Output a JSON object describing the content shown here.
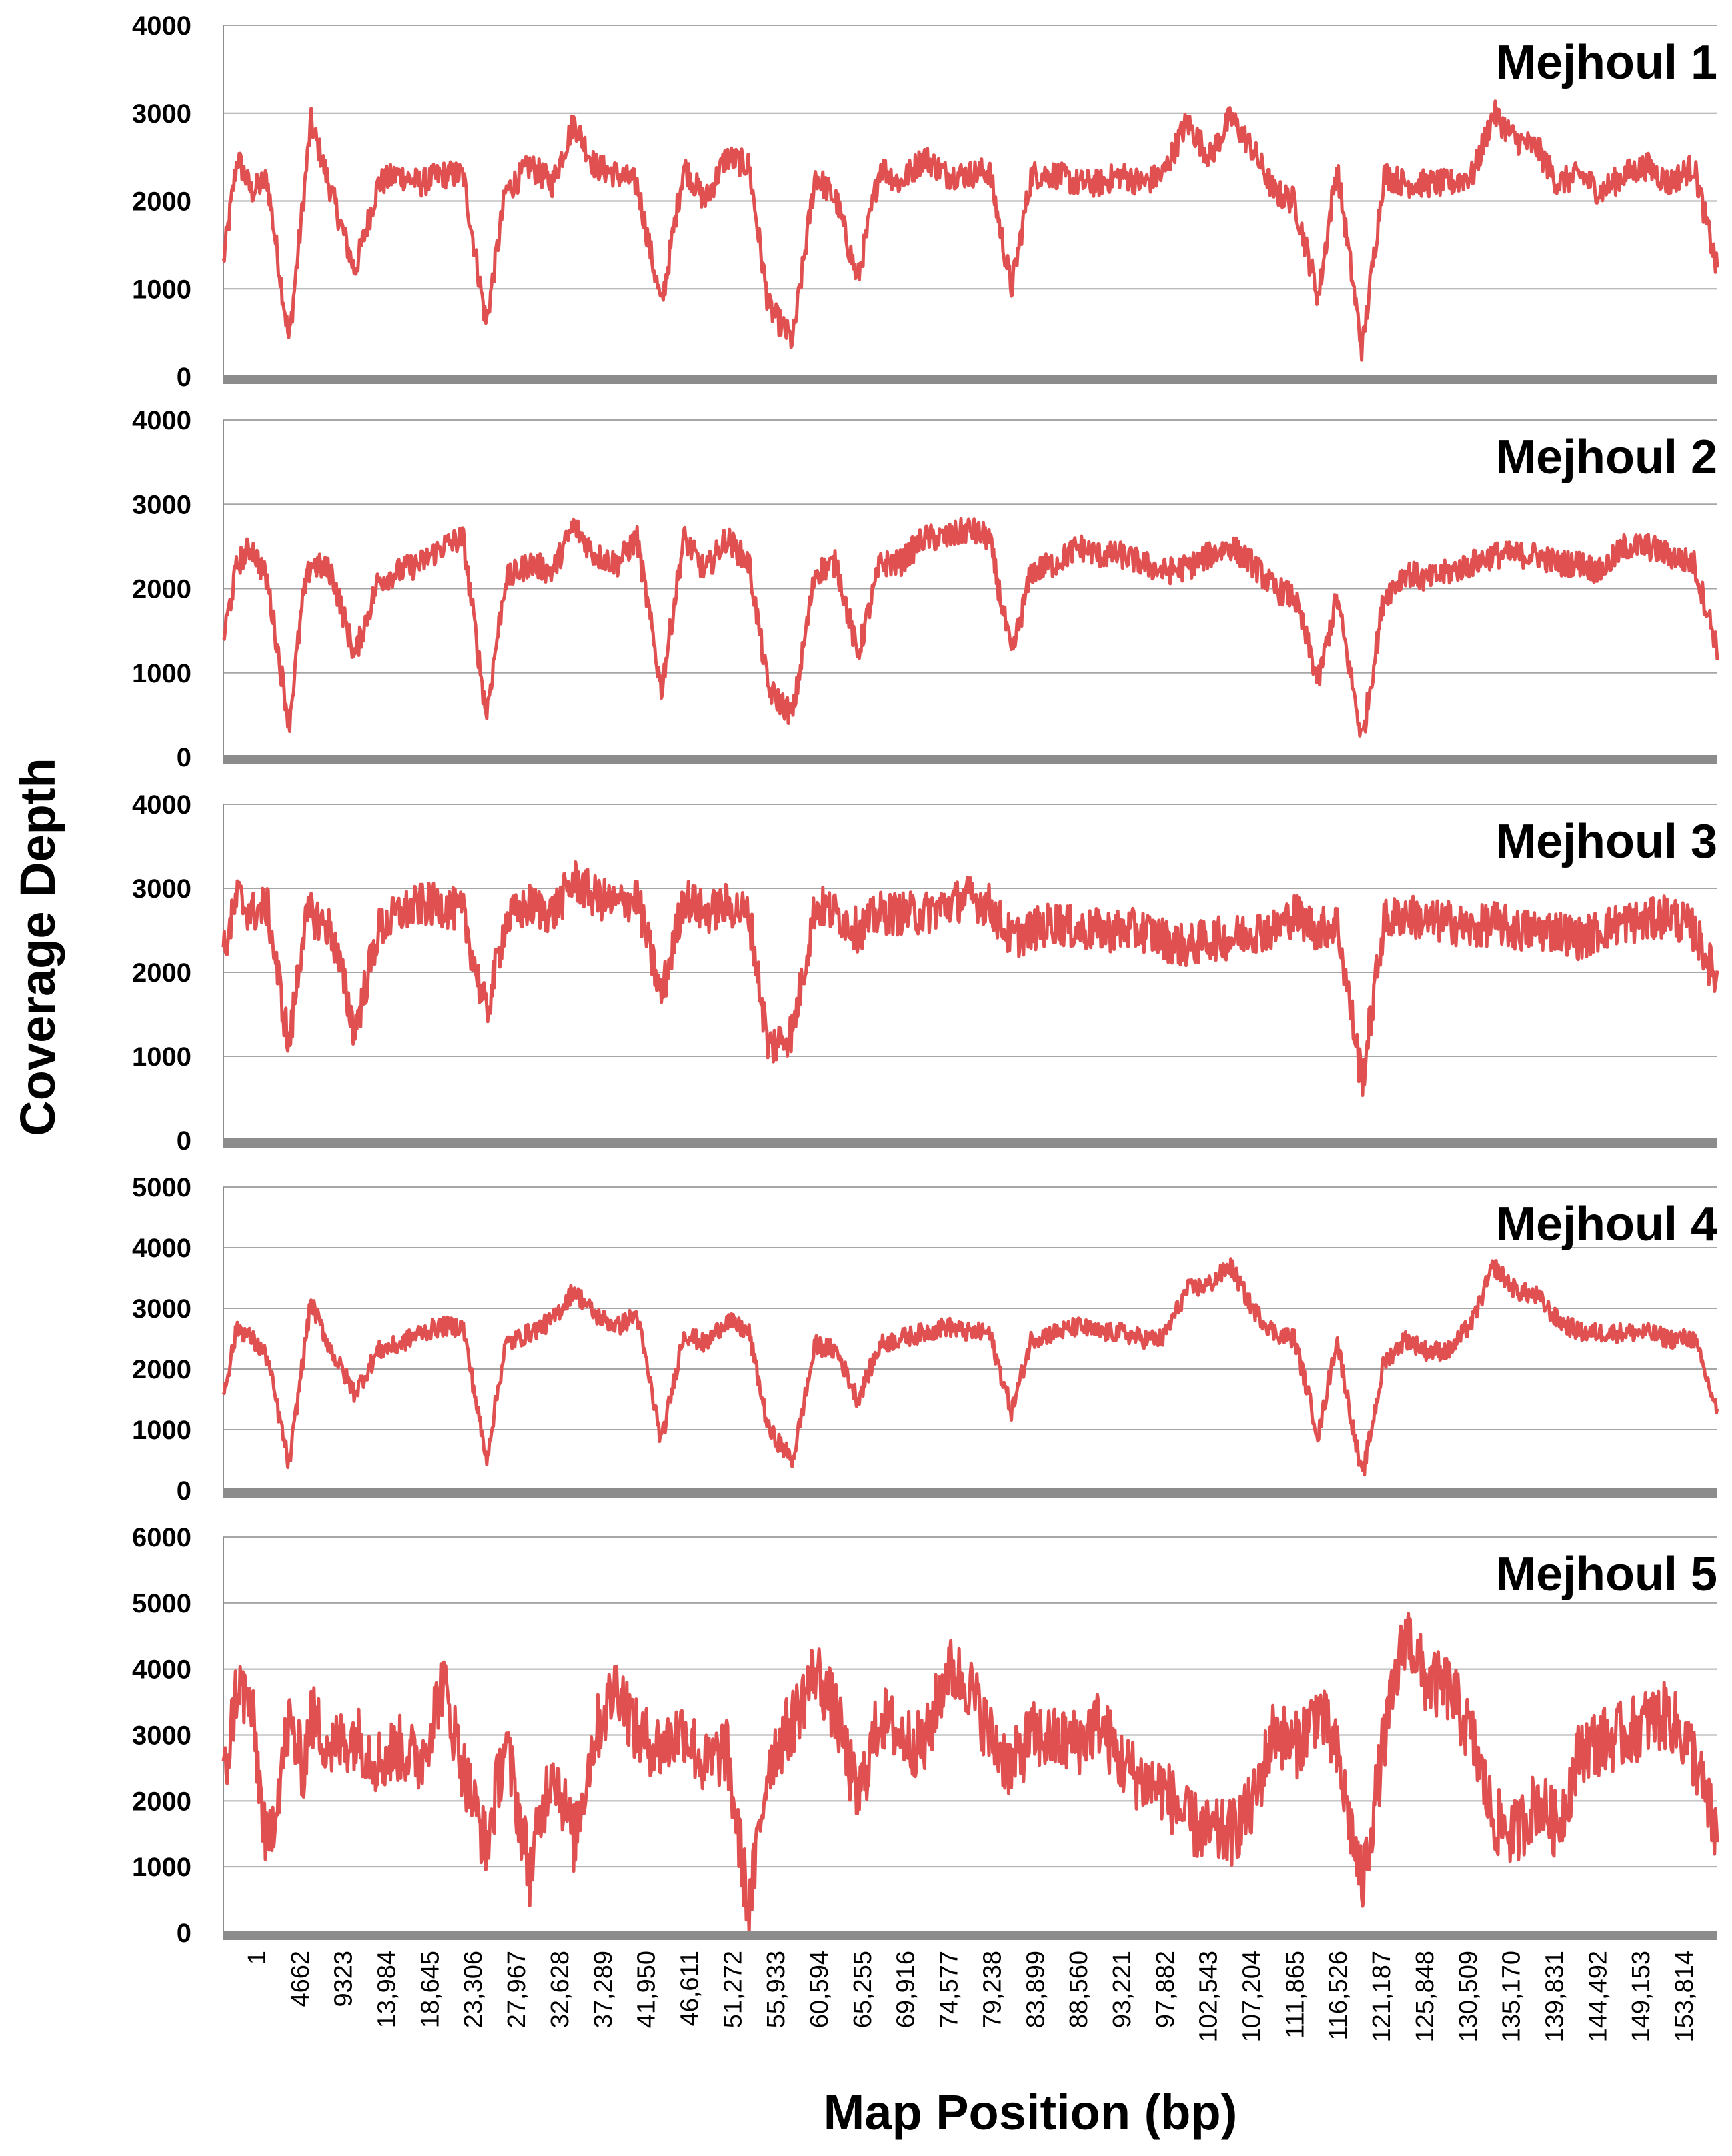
{
  "chart_data": {
    "type": "line",
    "xlabel": "Map Position (bp)",
    "ylabel": "Coverage Depth",
    "x_tick_labels": [
      "1",
      "4662",
      "9323",
      "13,984",
      "18,645",
      "23,306",
      "27,967",
      "32,628",
      "37,289",
      "41,950",
      "46,611",
      "51,272",
      "55,933",
      "60,594",
      "65,255",
      "69,916",
      "74,577",
      "79,238",
      "83,899",
      "88,560",
      "93,221",
      "97,882",
      "102,543",
      "107,204",
      "111,865",
      "116,526",
      "121,187",
      "125,848",
      "130,509",
      "135,170",
      "139,831",
      "144,492",
      "149,153",
      "153,814"
    ],
    "xlim": [
      0,
      159000
    ],
    "colors": {
      "series": "#e05050",
      "grid": "#a6a6a6",
      "baseline": "#8c8c8c"
    },
    "grid": true,
    "panels": [
      {
        "title": "Mejhoul 1",
        "ylim": [
          0,
          4000
        ],
        "yticks": [
          "0",
          "1000",
          "2000",
          "3000",
          "4000"
        ],
        "x": [
          0,
          1500,
          3000,
          4662,
          7000,
          8500,
          9323,
          11500,
          13984,
          16500,
          18645,
          21000,
          23306,
          25500,
          27967,
          30000,
          32628,
          35000,
          37289,
          39500,
          41950,
          44000,
          46611,
          49000,
          51272,
          53500,
          55933,
          58000,
          60594,
          63000,
          65255,
          67500,
          69916,
          72000,
          74577,
          77000,
          79238,
          81500,
          83899,
          86000,
          88560,
          91000,
          93221,
          95500,
          97882,
          100000,
          102543,
          105000,
          107204,
          109500,
          111865,
          114000,
          116526,
          118500,
          121187,
          123500,
          125848,
          128000,
          130509,
          133000,
          135170,
          137500,
          139831,
          142000,
          144492,
          146500,
          149153,
          151500,
          153814,
          156500,
          159000
        ],
        "values": [
          1300,
          2500,
          2100,
          2250,
          400,
          2000,
          2900,
          2100,
          1200,
          2200,
          2300,
          2200,
          2300,
          2300,
          600,
          2100,
          2400,
          2200,
          2900,
          2400,
          2300,
          2200,
          800,
          2400,
          2000,
          2500,
          2400,
          800,
          400,
          2300,
          2000,
          1100,
          2400,
          2200,
          2500,
          2300,
          2300,
          2350,
          1000,
          2300,
          2300,
          2200,
          2200,
          2300,
          2200,
          2300,
          2900,
          2500,
          2950,
          2600,
          2100,
          2000,
          900,
          2400,
          300,
          2300,
          2200,
          2200,
          2200,
          2300,
          3000,
          2700,
          2600,
          2200,
          2300,
          2100,
          2300,
          2400,
          2200,
          2400,
          1200
        ]
      },
      {
        "title": "Mejhoul 2",
        "ylim": [
          0,
          4000
        ],
        "yticks": [
          "0",
          "1000",
          "2000",
          "3000",
          "4000"
        ],
        "x": [
          0,
          1500,
          3000,
          4662,
          7000,
          8500,
          9323,
          11500,
          13984,
          16500,
          18645,
          21000,
          23306,
          25500,
          27967,
          30000,
          32628,
          35000,
          37289,
          39500,
          41950,
          44000,
          46611,
          49000,
          51272,
          53500,
          55933,
          58000,
          60594,
          63000,
          65255,
          67500,
          69916,
          72000,
          74577,
          77000,
          79238,
          81500,
          83899,
          86000,
          88560,
          91000,
          93221,
          95500,
          97882,
          100000,
          102543,
          105000,
          107204,
          109500,
          111865,
          114000,
          116526,
          118500,
          121187,
          123500,
          125848,
          128000,
          130509,
          133000,
          135170,
          137500,
          139831,
          142000,
          144492,
          146500,
          149153,
          151500,
          153814,
          156500,
          159000
        ],
        "values": [
          1400,
          2300,
          2500,
          2100,
          400,
          1900,
          2300,
          2200,
          1200,
          2100,
          2200,
          2300,
          2500,
          2600,
          500,
          2100,
          2300,
          2200,
          2750,
          2400,
          2300,
          2600,
          800,
          2600,
          2200,
          2600,
          2300,
          800,
          500,
          2200,
          2300,
          1200,
          2300,
          2300,
          2600,
          2600,
          2700,
          2600,
          1200,
          2200,
          2300,
          2500,
          2400,
          2400,
          2300,
          2200,
          2250,
          2400,
          2500,
          2300,
          2000,
          1900,
          900,
          1900,
          200,
          1900,
          2200,
          2100,
          2200,
          2300,
          2400,
          2400,
          2400,
          2300,
          2300,
          2200,
          2500,
          2500,
          2400,
          2300,
          1300
        ]
      },
      {
        "title": "Mejhoul 3",
        "ylim": [
          0,
          4000
        ],
        "yticks": [
          "0",
          "1000",
          "2000",
          "3000",
          "4000"
        ],
        "x": [
          0,
          1500,
          3000,
          4662,
          7000,
          8500,
          9323,
          11500,
          13984,
          16500,
          18645,
          21000,
          23306,
          25500,
          27967,
          30000,
          32628,
          35000,
          37289,
          39500,
          41950,
          44000,
          46611,
          49000,
          51272,
          53500,
          55933,
          58000,
          60594,
          63000,
          65255,
          67500,
          69916,
          72000,
          74577,
          77000,
          79238,
          81500,
          83899,
          86000,
          88560,
          91000,
          93221,
          95500,
          97882,
          100000,
          102543,
          105000,
          107204,
          109500,
          111865,
          114000,
          116526,
          118500,
          121187,
          123500,
          125848,
          128000,
          130509,
          133000,
          135170,
          137500,
          139831,
          142000,
          144492,
          146500,
          149153,
          151500,
          153814,
          156500,
          159000
        ],
        "values": [
          2200,
          2900,
          2700,
          2800,
          1100,
          2500,
          2700,
          2500,
          1300,
          2500,
          2700,
          2800,
          2800,
          2700,
          1500,
          2600,
          2800,
          2700,
          3100,
          2900,
          2800,
          2900,
          1700,
          2900,
          2700,
          2800,
          2700,
          1100,
          1300,
          2800,
          2700,
          2500,
          2700,
          2700,
          2700,
          2800,
          2900,
          2800,
          2400,
          2500,
          2600,
          2500,
          2500,
          2500,
          2500,
          2400,
          2300,
          2400,
          2400,
          2500,
          2500,
          2700,
          2500,
          2600,
          700,
          2600,
          2700,
          2600,
          2600,
          2500,
          2600,
          2500,
          2500,
          2500,
          2400,
          2500,
          2600,
          2600,
          2700,
          2500,
          1900
        ]
      },
      {
        "title": "Mejhoul 4",
        "ylim": [
          0,
          5000
        ],
        "yticks": [
          "0",
          "1000",
          "2000",
          "3000",
          "4000",
          "5000"
        ],
        "x": [
          0,
          1500,
          3000,
          4662,
          7000,
          8500,
          9323,
          11500,
          13984,
          16500,
          18645,
          21000,
          23306,
          25500,
          27967,
          30000,
          32628,
          35000,
          37289,
          39500,
          41950,
          44000,
          46611,
          49000,
          51272,
          53500,
          55933,
          58000,
          60594,
          63000,
          65255,
          67500,
          69916,
          72000,
          74577,
          77000,
          79238,
          81500,
          83899,
          86000,
          88560,
          91000,
          93221,
          95500,
          97882,
          100000,
          102543,
          105000,
          107204,
          109500,
          111865,
          114000,
          116526,
          118500,
          121187,
          123500,
          125848,
          128000,
          130509,
          133000,
          135170,
          137500,
          139831,
          142000,
          144492,
          146500,
          149153,
          151500,
          153814,
          156500,
          159000
        ],
        "values": [
          1600,
          2700,
          2500,
          2200,
          400,
          2200,
          3100,
          2300,
          1600,
          2300,
          2400,
          2600,
          2700,
          2700,
          500,
          2400,
          2600,
          2800,
          3300,
          2900,
          2700,
          2900,
          800,
          2600,
          2400,
          2800,
          2600,
          1000,
          500,
          2400,
          2300,
          1500,
          2400,
          2500,
          2600,
          2700,
          2600,
          2600,
          1300,
          2500,
          2600,
          2700,
          2600,
          2600,
          2500,
          2500,
          3300,
          3400,
          3700,
          3000,
          2600,
          2500,
          900,
          2500,
          200,
          2100,
          2500,
          2300,
          2300,
          2800,
          3700,
          3300,
          3200,
          2800,
          2600,
          2600,
          2600,
          2600,
          2500,
          2500,
          1300
        ]
      },
      {
        "title": "Mejhoul 5",
        "ylim": [
          0,
          6000
        ],
        "yticks": [
          "0",
          "1000",
          "2000",
          "3000",
          "4000",
          "5000",
          "6000"
        ],
        "x": [
          0,
          1500,
          3000,
          4662,
          7000,
          8500,
          9323,
          11500,
          13984,
          16500,
          18645,
          21000,
          23306,
          25500,
          27967,
          30000,
          32628,
          35000,
          37289,
          39500,
          41950,
          44000,
          46611,
          49000,
          51272,
          53500,
          55933,
          58000,
          60594,
          63000,
          65255,
          67500,
          69916,
          72000,
          74577,
          77000,
          79238,
          81500,
          83899,
          86000,
          88560,
          91000,
          93221,
          95500,
          97882,
          100000,
          102543,
          105000,
          107204,
          109500,
          111865,
          114000,
          116526,
          118500,
          121187,
          123500,
          125848,
          128000,
          130509,
          133000,
          135170,
          137500,
          139831,
          142000,
          144492,
          146500,
          149153,
          151500,
          153814,
          156500,
          159000
        ],
        "values": [
          2200,
          3800,
          3400,
          1200,
          3200,
          2500,
          3300,
          2800,
          3000,
          2600,
          2800,
          2600,
          3800,
          2500,
          1300,
          2900,
          900,
          2600,
          1400,
          3000,
          3800,
          3000,
          2800,
          3100,
          2500,
          2800,
          300,
          2600,
          3200,
          4000,
          3300,
          2000,
          3300,
          3000,
          2800,
          4000,
          3800,
          3000,
          2500,
          3000,
          2900,
          2900,
          3200,
          2600,
          2300,
          2200,
          1700,
          1500,
          1500,
          1900,
          3100,
          2800,
          3400,
          2700,
          700,
          2900,
          4600,
          3800,
          3700,
          2900,
          1700,
          1500,
          2000,
          1600,
          2800,
          2900,
          3000,
          3200,
          3300,
          2700,
          1400
        ]
      }
    ]
  }
}
